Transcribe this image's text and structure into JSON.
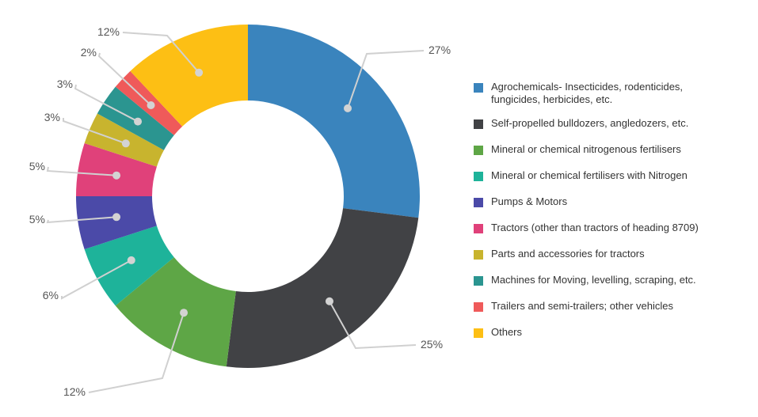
{
  "chart_data": {
    "type": "pie",
    "variant": "donut",
    "title": "",
    "categories": [
      "Agrochemicals- Insecticides, rodenticides, fungicides, herbicides, etc.",
      "Self-propelled bulldozers, angledozers, etc.",
      "Mineral or chemical nitrogenous fertilisers",
      "Mineral or chemical  fertilisers with Nitrogen",
      "Pumps & Motors",
      "Tractors (other than tractors of heading 8709)",
      "Parts and accessories for tractors",
      "Machines for Moving, levelling, scraping, etc.",
      "Trailers and semi-trailers; other vehicles",
      "Others"
    ],
    "values": [
      27,
      25,
      12,
      6,
      5,
      5,
      3,
      3,
      2,
      12
    ],
    "value_labels": [
      "27%",
      "25%",
      "12%",
      "6%",
      "5%",
      "5%",
      "3%",
      "3%",
      "2%",
      "12%"
    ],
    "colors": [
      "#3a84bd",
      "#414245",
      "#5ea646",
      "#1eb39a",
      "#4b4aa8",
      "#e0417a",
      "#c8b42e",
      "#2b9590",
      "#ef5a5a",
      "#fdbf14"
    ],
    "slice_order_clockwise_from_top": [
      0,
      1,
      2,
      3,
      4,
      5,
      6,
      7,
      8,
      9
    ],
    "legend_placement": "right"
  }
}
